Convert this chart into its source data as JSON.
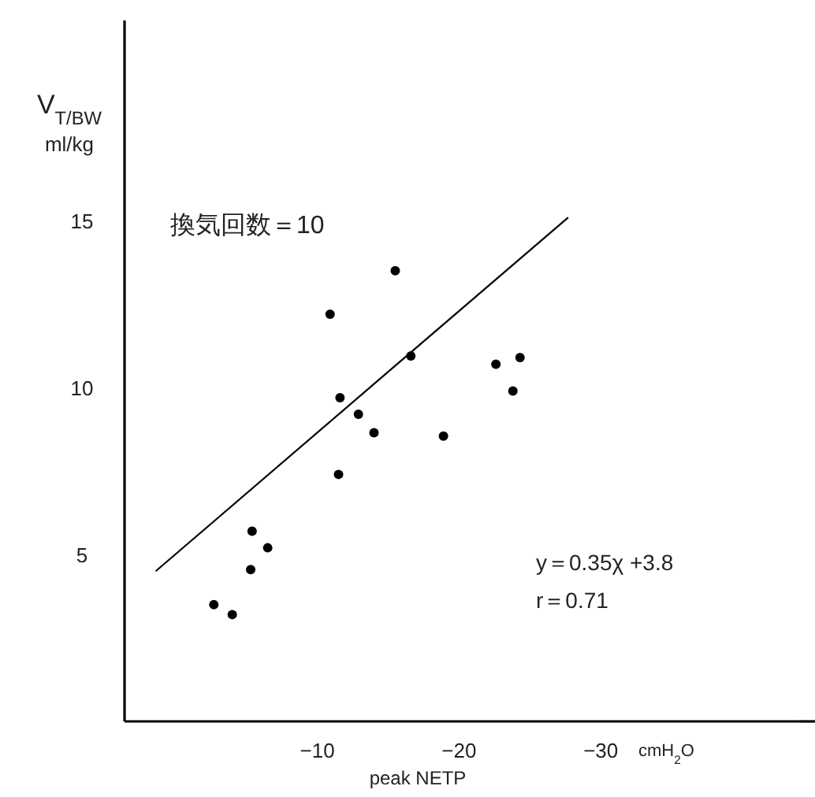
{
  "chart_data": {
    "type": "scatter",
    "xlabel": "peak NETP",
    "ylabel": "V$_{T/BW}$\nml/kg",
    "annotations": [
      "換気回数＝10",
      "y＝0.35χ +3.8",
      "r＝0.71",
      "cmH$_{2}$O"
    ],
    "xlim": [
      3.6,
      -44
    ],
    "ylim": [
      0,
      21
    ],
    "xticks": [
      {
        "value": -10,
        "label": "−10"
      },
      {
        "value": -20,
        "label": "−20"
      },
      {
        "value": -30,
        "label": "−30"
      }
    ],
    "yticks": [
      5,
      10,
      15
    ],
    "grid": false,
    "series": [
      {
        "marker": "circle",
        "color": "#000000",
        "x": [
          -15.5,
          -10.9,
          -16.6,
          -22.6,
          -23.8,
          -11.6,
          -12.9,
          -14.0,
          -18.9,
          -11.5,
          -5.4,
          -6.5,
          -5.3,
          -2.7,
          -4.0,
          -24.3
        ],
        "values": [
          13.5,
          12.2,
          10.95,
          10.7,
          9.9,
          9.7,
          9.2,
          8.65,
          8.55,
          7.4,
          5.7,
          5.2,
          4.55,
          3.5,
          3.2,
          10.9
        ]
      },
      {
        "type": "line",
        "color": "#000000",
        "x": [
          1.4,
          -27.7
        ],
        "values": [
          4.5,
          15.1
        ]
      }
    ]
  }
}
